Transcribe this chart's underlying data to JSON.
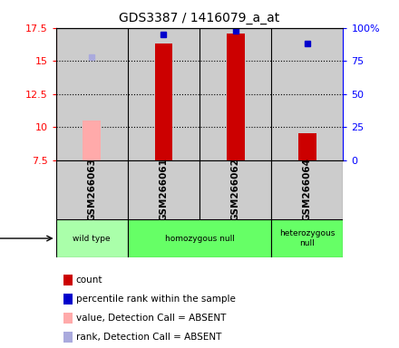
{
  "title": "GDS3387 / 1416079_a_at",
  "samples": [
    "GSM266063",
    "GSM266061",
    "GSM266062",
    "GSM266064"
  ],
  "bar_values": [
    null,
    16.3,
    17.1,
    9.5
  ],
  "bar_absent_values": [
    10.5,
    null,
    null,
    null
  ],
  "bar_colors": [
    "#cc0000",
    "#cc0000",
    "#cc0000",
    "#cc0000"
  ],
  "bar_absent_colors": [
    "#ffaaaa",
    "#ffaaaa",
    "#ffaaaa",
    "#ffaaaa"
  ],
  "rank_values": [
    null,
    95,
    98,
    88
  ],
  "rank_absent_values": [
    78,
    null,
    null,
    null
  ],
  "ylim_left": [
    7.5,
    17.5
  ],
  "ylim_right": [
    0,
    100
  ],
  "yticks_left": [
    7.5,
    10.0,
    12.5,
    15.0,
    17.5
  ],
  "yticks_right": [
    0,
    25,
    50,
    75,
    100
  ],
  "ytick_labels_left": [
    "7.5",
    "10",
    "12.5",
    "15",
    "17.5"
  ],
  "ytick_labels_right": [
    "0",
    "25",
    "50",
    "75",
    "100%"
  ],
  "bg_color": "#cccccc",
  "plot_bg": "#ffffff",
  "bar_width": 0.25,
  "rank_marker": "s",
  "rank_marker_size": 5,
  "rank_color": "#0000cc",
  "rank_absent_color": "#aaaadd",
  "geno_color_wt": "#aaffaa",
  "geno_color_hom": "#66ff66",
  "geno_color_het": "#66ff66",
  "legend_items": [
    {
      "color": "#cc0000",
      "label": "count"
    },
    {
      "color": "#0000cc",
      "label": "percentile rank within the sample"
    },
    {
      "color": "#ffaaaa",
      "label": "value, Detection Call = ABSENT"
    },
    {
      "color": "#aaaadd",
      "label": "rank, Detection Call = ABSENT"
    }
  ]
}
